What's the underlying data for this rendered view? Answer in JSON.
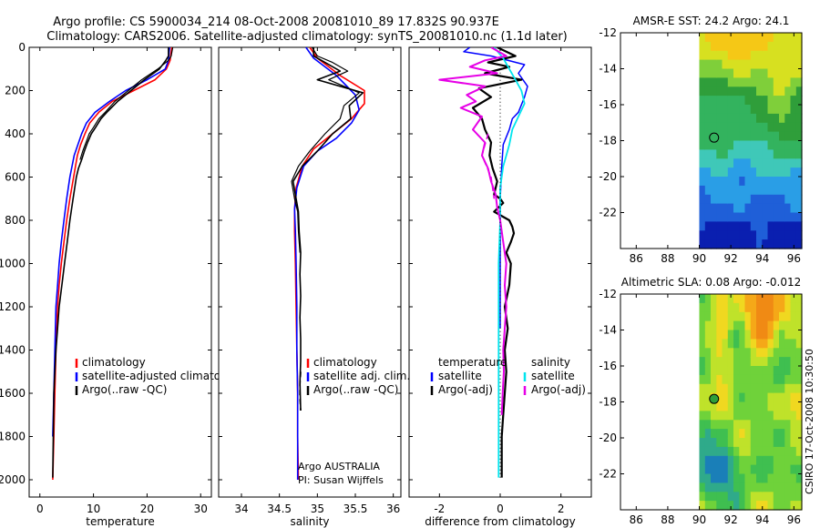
{
  "title_line1": "Argo profile: CS 5900034_214 08-Oct-2008 20081010_89 17.832S 90.937E",
  "title_line2": "Climatology: CARS2006. Satellite-adjusted climatology: synTS_20081010.nc (1.1d later)",
  "side_text": "CSIRO 17-Oct-2008 10:30:50",
  "colors": {
    "red": "#ff0000",
    "blue": "#0000ff",
    "black": "#000000",
    "cyan": "#00e5ee",
    "magenta": "#e600e6"
  },
  "chart_data": [
    {
      "type": "line",
      "id": "temperature",
      "xlabel": "temperature",
      "ylabel": "",
      "xlim": [
        -2,
        32
      ],
      "ylim": [
        2080,
        0
      ],
      "xticks": [
        0,
        10,
        20,
        30
      ],
      "yticks": [
        0,
        200,
        400,
        600,
        800,
        1000,
        1200,
        1400,
        1600,
        1800,
        2000
      ],
      "legend": [
        "climatology",
        "satellite-adjusted climatology",
        "Argo(..raw -QC)"
      ],
      "series": [
        {
          "name": "climatology",
          "color": "red",
          "width": 1.6,
          "x": [
            24.6,
            24.3,
            23.6,
            21.5,
            17.5,
            13.5,
            11.0,
            9.3,
            8.4,
            7.6,
            7.0,
            6.3,
            5.6,
            5.0,
            4.5,
            4.0,
            3.6,
            3.3,
            3.0,
            2.8,
            2.6,
            2.4
          ],
          "y": [
            0,
            60,
            100,
            150,
            200,
            250,
            300,
            350,
            400,
            450,
            500,
            600,
            700,
            800,
            900,
            1000,
            1100,
            1200,
            1400,
            1600,
            1800,
            2000
          ]
        },
        {
          "name": "satellite-adjusted climatology",
          "color": "blue",
          "width": 1.6,
          "x": [
            24.2,
            24.0,
            23.4,
            20.0,
            16.0,
            13.0,
            10.3,
            8.7,
            7.8,
            7.1,
            6.4,
            5.6,
            5.0,
            4.5,
            4.0,
            3.6,
            3.3,
            3.0,
            2.8,
            2.6,
            2.4
          ],
          "y": [
            0,
            60,
            100,
            150,
            200,
            250,
            300,
            350,
            400,
            450,
            500,
            600,
            700,
            800,
            900,
            1000,
            1100,
            1200,
            1400,
            1600,
            1800
          ]
        },
        {
          "name": "Argo(..raw -QC)",
          "color": "black",
          "width": 1.6,
          "x": [
            24.0,
            24.0,
            23.5,
            22.3,
            19.5,
            17.0,
            14.5,
            12.5,
            11.4,
            10.4,
            9.6,
            8.9,
            8.3,
            7.8,
            7.2,
            6.8,
            6.2,
            5.6,
            5.1,
            4.6,
            4.1,
            3.6,
            3.3,
            3.0,
            2.8,
            2.6,
            2.5,
            2.4
          ],
          "y": [
            0,
            40,
            60,
            100,
            150,
            200,
            250,
            300,
            330,
            370,
            400,
            440,
            480,
            520,
            560,
            600,
            700,
            800,
            900,
            1000,
            1100,
            1200,
            1300,
            1400,
            1500,
            1600,
            1800,
            1990
          ]
        },
        {
          "name": "Argo(..raw -QC)",
          "color": "black",
          "width": 1.2,
          "x": [
            24.8,
            24.5,
            24.0,
            22.0,
            19.0,
            16.5,
            14.0,
            12.2,
            11.0,
            10.0,
            9.2,
            8.6,
            8.0,
            7.5
          ],
          "y": [
            0,
            40,
            60,
            100,
            150,
            200,
            250,
            300,
            330,
            370,
            400,
            440,
            480,
            520
          ]
        }
      ]
    },
    {
      "type": "line",
      "id": "salinity",
      "xlabel": "salinity",
      "ylabel": "",
      "xlim": [
        33.7,
        36.1
      ],
      "ylim": [
        2080,
        0
      ],
      "xticks": [
        34,
        34.5,
        35,
        35.5,
        36
      ],
      "legend": [
        "climatology",
        "satellite adj. clim.",
        "Argo(..raw -QC)"
      ],
      "annotations": [
        "Argo AUSTRALIA",
        "PI: Susan Wijffels"
      ],
      "series": [
        {
          "name": "climatology",
          "color": "red",
          "width": 1.6,
          "x": [
            34.9,
            35.0,
            35.3,
            35.62,
            35.62,
            35.45,
            35.2,
            34.95,
            34.8,
            34.72,
            34.7,
            34.7,
            34.71,
            34.72,
            34.73,
            34.74,
            34.74,
            34.75
          ],
          "y": [
            0,
            50,
            130,
            200,
            260,
            330,
            400,
            470,
            550,
            650,
            750,
            850,
            1000,
            1200,
            1400,
            1600,
            1800,
            2000
          ]
        },
        {
          "name": "satellite adj. clim.",
          "color": "blue",
          "width": 1.6,
          "x": [
            34.85,
            34.95,
            35.25,
            35.5,
            35.55,
            35.45,
            35.25,
            35.0,
            34.82,
            34.73,
            34.7,
            34.71,
            34.72,
            34.73,
            34.73,
            34.74,
            34.74,
            34.74
          ],
          "y": [
            0,
            50,
            130,
            220,
            290,
            350,
            420,
            480,
            550,
            650,
            750,
            850,
            1000,
            1200,
            1400,
            1600,
            1800,
            2000
          ]
        },
        {
          "name": "Argo(..raw -QC)",
          "color": "black",
          "width": 1.6,
          "x": [
            34.95,
            34.95,
            35.1,
            35.3,
            35.0,
            35.6,
            35.42,
            35.44,
            35.2,
            35.0,
            34.8,
            34.68,
            34.72,
            34.75,
            34.76,
            34.78,
            34.77,
            34.78,
            34.77,
            34.78,
            34.78,
            34.77,
            34.78
          ],
          "y": [
            0,
            40,
            70,
            110,
            150,
            210,
            270,
            330,
            400,
            480,
            550,
            620,
            700,
            760,
            850,
            950,
            1050,
            1150,
            1250,
            1350,
            1450,
            1550,
            1680
          ]
        },
        {
          "name": "Argo(..raw -QC)",
          "color": "black",
          "width": 1.2,
          "x": [
            34.93,
            35.0,
            35.2,
            35.4,
            35.15,
            35.55,
            35.35,
            35.3,
            35.1,
            34.9,
            34.75,
            34.66,
            34.7,
            34.74,
            34.75,
            34.77
          ],
          "y": [
            0,
            40,
            70,
            110,
            150,
            210,
            270,
            330,
            400,
            480,
            550,
            620,
            700,
            760,
            850,
            950
          ]
        },
        {
          "name": "Argo(..raw -QC)",
          "color": "black",
          "width": 1.6,
          "dash": "6,4",
          "x": [
            34.78,
            34.77,
            34.77,
            34.78
          ],
          "y": [
            1500,
            1560,
            1620,
            1680
          ]
        }
      ]
    },
    {
      "type": "line",
      "id": "difference",
      "xlabel": "difference from climatology",
      "ylabel": "",
      "xlim": [
        -3.0,
        3.0
      ],
      "ylim": [
        2080,
        0
      ],
      "xticks": [
        -2,
        0,
        2
      ],
      "legend": [
        "temperature",
        "satellite",
        "Argo(-adj)",
        "salinity",
        "satellite",
        "Argo(-adj)"
      ],
      "series": [
        {
          "name": "temperature satellite",
          "color": "blue",
          "width": 1.5,
          "x": [
            -1.0,
            -1.2,
            -0.3,
            0.8,
            0.6,
            0.9,
            0.8,
            0.6,
            0.4,
            0.3,
            0.1,
            0.05,
            0.0,
            0.0,
            0.0
          ],
          "y": [
            0,
            20,
            40,
            80,
            120,
            180,
            230,
            300,
            330,
            380,
            450,
            550,
            700,
            1000,
            1300
          ]
        },
        {
          "name": "temperature Argo(-adj)",
          "color": "black",
          "width": 2.2,
          "x": [
            -0.1,
            0.5,
            -0.4,
            0.3,
            -0.5,
            0.7,
            -0.7,
            -0.3,
            -0.9,
            -0.6,
            -0.5,
            -0.3,
            -0.35,
            -0.25,
            -0.1,
            -0.2,
            0.0,
            0.1,
            -0.2,
            0.3,
            0.4,
            0.45,
            0.35,
            0.2,
            0.35,
            0.3,
            0.15,
            0.25,
            0.15,
            0.2,
            0.15,
            0.1,
            0.05,
            0.05
          ],
          "y": [
            0,
            40,
            70,
            90,
            120,
            150,
            190,
            230,
            280,
            330,
            380,
            440,
            500,
            560,
            620,
            680,
            700,
            720,
            760,
            800,
            830,
            860,
            900,
            950,
            1000,
            1100,
            1200,
            1300,
            1400,
            1500,
            1600,
            1700,
            1800,
            1990
          ]
        },
        {
          "name": "salinity satellite",
          "color": "cyan",
          "width": 1.8,
          "x": [
            -0.2,
            0.1,
            0.3,
            0.5,
            0.7,
            0.8,
            0.6,
            0.4,
            0.3,
            0.2,
            0.1,
            0.0,
            0.0,
            -0.05,
            -0.05,
            -0.05,
            -0.05
          ],
          "y": [
            0,
            50,
            100,
            150,
            200,
            260,
            320,
            380,
            450,
            500,
            550,
            650,
            800,
            1000,
            1300,
            1600,
            1990
          ]
        },
        {
          "name": "salinity Argo(-adj)",
          "color": "magenta",
          "width": 2.0,
          "x": [
            -0.3,
            0.2,
            -0.5,
            -1.0,
            -0.1,
            -2.0,
            -0.5,
            -1.1,
            -0.8,
            -1.3,
            -0.6,
            -0.9,
            -0.5,
            -0.6,
            -0.4,
            -0.3,
            -0.15,
            -0.1,
            0.0,
            0.1,
            0.2,
            0.15,
            0.2,
            0.15,
            0.1,
            0.12,
            0.08,
            0.05
          ],
          "y": [
            0,
            40,
            60,
            90,
            120,
            150,
            180,
            220,
            250,
            280,
            320,
            380,
            440,
            500,
            560,
            620,
            680,
            740,
            800,
            900,
            1000,
            1100,
            1200,
            1300,
            1400,
            1500,
            1600,
            1700
          ]
        },
        {
          "name": "salinity Argo(-adj)",
          "color": "magenta",
          "width": 1.5,
          "dash": "6,4",
          "x": [
            -0.4,
            -0.6,
            -0.3,
            -0.2
          ],
          "y": [
            400,
            500,
            600,
            700
          ]
        },
        {
          "name": "zero",
          "color": "black",
          "width": 1.0,
          "dash": "1,3",
          "x": [
            0,
            0
          ],
          "y": [
            100,
            1990
          ]
        }
      ]
    },
    {
      "type": "heatmap",
      "id": "sst",
      "title": "AMSR-E SST: 24.2 Argo: 24.1",
      "xlim": [
        85,
        96.5
      ],
      "ylim": [
        -24,
        -12
      ],
      "xticks": [
        86,
        88,
        90,
        92,
        94,
        96
      ],
      "yticks": [
        -12,
        -14,
        -16,
        -18,
        -20,
        -22
      ],
      "data_x_start": 90,
      "data_x_end": 96.5,
      "float_position": [
        90.937,
        -17.832
      ],
      "float_marker_fill": "none",
      "palette": [
        "#0a1fb0",
        "#1f5fd8",
        "#2a9ee6",
        "#3fc8b8",
        "#33b35e",
        "#2f9e3a",
        "#7fcf3a",
        "#d7e020",
        "#f5c816"
      ]
    },
    {
      "type": "heatmap",
      "id": "sla",
      "title": "Altimetric SLA: 0.08 Argo: -0.012",
      "xlim": [
        85,
        96.5
      ],
      "ylim": [
        -24,
        -12
      ],
      "xticks": [
        86,
        88,
        90,
        92,
        94,
        96
      ],
      "yticks": [
        -12,
        -14,
        -16,
        -18,
        -20,
        -22
      ],
      "data_x_start": 90,
      "data_x_end": 96.5,
      "float_position": [
        90.937,
        -17.832
      ],
      "float_marker_fill": "#2f9e3a",
      "palette": [
        "#1a7fb8",
        "#2faa8a",
        "#3fbf50",
        "#6fd23a",
        "#bfe22a",
        "#f0d820",
        "#f5a818",
        "#f08a14"
      ]
    }
  ]
}
